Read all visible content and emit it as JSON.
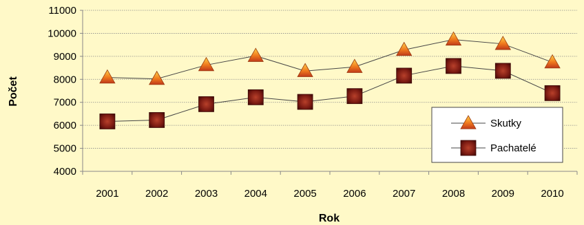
{
  "chart_data": {
    "type": "line",
    "title": "",
    "xlabel": "Rok",
    "ylabel": "Počet",
    "categories": [
      "2001",
      "2002",
      "2003",
      "2004",
      "2005",
      "2006",
      "2007",
      "2008",
      "2009",
      "2010"
    ],
    "ylim": [
      4000,
      11000
    ],
    "yticks": [
      "4000",
      "5000",
      "6000",
      "7000",
      "8000",
      "9000",
      "10000",
      "11000"
    ],
    "grid": true,
    "legend_position": "right",
    "series": [
      {
        "name": "Skutky",
        "marker": "triangle",
        "color": "#e65c1a",
        "values": [
          8080,
          8020,
          8620,
          9020,
          8360,
          8540,
          9280,
          9730,
          9540,
          8740
        ]
      },
      {
        "name": "Pachatelé",
        "marker": "square",
        "color": "#7a1a12",
        "values": [
          6170,
          6230,
          6920,
          7220,
          7020,
          7270,
          8160,
          8580,
          8370,
          7400
        ]
      }
    ]
  }
}
